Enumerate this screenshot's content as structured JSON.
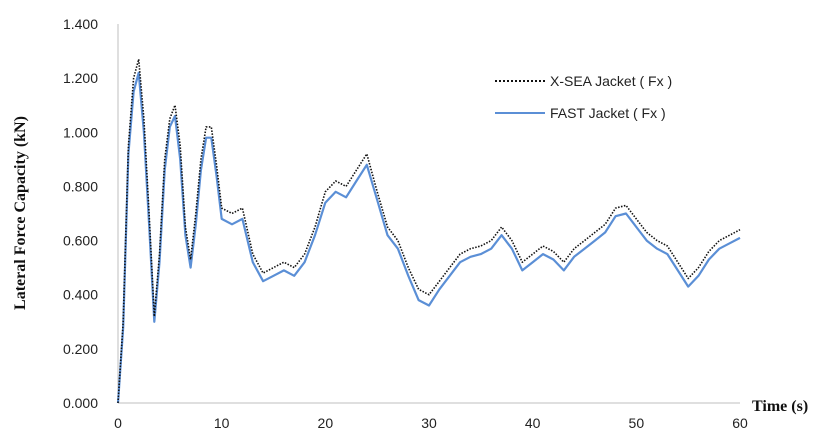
{
  "chart_data": {
    "type": "line",
    "title": "",
    "xlabel": "Time (s)",
    "ylabel": "Lateral Force Capacity (kN)",
    "xlim": [
      0,
      60
    ],
    "ylim": [
      0,
      1.4
    ],
    "xticks": [
      "0",
      "10",
      "20",
      "30",
      "40",
      "50",
      "60"
    ],
    "yticks": [
      "0.000",
      "0.200",
      "0.400",
      "0.600",
      "0.800",
      "1.000",
      "1.200",
      "1.400"
    ],
    "grid": false,
    "legend_position": "top-right",
    "series": [
      {
        "name": "X-SEA Jacket ( Fx )",
        "color": "#111111",
        "style": "dotted",
        "x": [
          0,
          0.5,
          1,
          1.5,
          2,
          2.5,
          3,
          3.5,
          4,
          4.5,
          5,
          5.5,
          6,
          6.5,
          7,
          7.5,
          8,
          8.5,
          9,
          9.5,
          10,
          11,
          12,
          13,
          14,
          15,
          16,
          17,
          18,
          19,
          20,
          21,
          22,
          23,
          24,
          25,
          26,
          27,
          28,
          29,
          30,
          31,
          32,
          33,
          34,
          35,
          36,
          37,
          38,
          39,
          40,
          41,
          42,
          43,
          44,
          45,
          46,
          47,
          48,
          49,
          50,
          51,
          52,
          53,
          54,
          55,
          56,
          57,
          58,
          59,
          60
        ],
        "y": [
          0,
          0.3,
          0.95,
          1.2,
          1.27,
          1.05,
          0.7,
          0.32,
          0.55,
          0.9,
          1.05,
          1.1,
          0.95,
          0.65,
          0.53,
          0.7,
          0.9,
          1.02,
          1.02,
          0.88,
          0.72,
          0.7,
          0.72,
          0.55,
          0.48,
          0.5,
          0.52,
          0.5,
          0.55,
          0.65,
          0.78,
          0.82,
          0.8,
          0.86,
          0.92,
          0.78,
          0.65,
          0.6,
          0.5,
          0.42,
          0.4,
          0.45,
          0.5,
          0.55,
          0.57,
          0.58,
          0.6,
          0.65,
          0.6,
          0.52,
          0.55,
          0.58,
          0.56,
          0.52,
          0.57,
          0.6,
          0.63,
          0.66,
          0.72,
          0.73,
          0.68,
          0.63,
          0.6,
          0.58,
          0.52,
          0.46,
          0.5,
          0.56,
          0.6,
          0.62,
          0.64
        ]
      },
      {
        "name": "FAST Jacket ( Fx )",
        "color": "#5b8fd6",
        "style": "solid",
        "x": [
          0,
          0.5,
          1,
          1.5,
          2,
          2.5,
          3,
          3.5,
          4,
          4.5,
          5,
          5.5,
          6,
          6.5,
          7,
          7.5,
          8,
          8.5,
          9,
          9.5,
          10,
          11,
          12,
          13,
          14,
          15,
          16,
          17,
          18,
          19,
          20,
          21,
          22,
          23,
          24,
          25,
          26,
          27,
          28,
          29,
          30,
          31,
          32,
          33,
          34,
          35,
          36,
          37,
          38,
          39,
          40,
          41,
          42,
          43,
          44,
          45,
          46,
          47,
          48,
          49,
          50,
          51,
          52,
          53,
          54,
          55,
          56,
          57,
          58,
          59,
          60
        ],
        "y": [
          0,
          0.28,
          0.92,
          1.15,
          1.22,
          1.0,
          0.66,
          0.3,
          0.52,
          0.86,
          1.02,
          1.06,
          0.9,
          0.62,
          0.5,
          0.66,
          0.86,
          0.98,
          0.98,
          0.84,
          0.68,
          0.66,
          0.68,
          0.52,
          0.45,
          0.47,
          0.49,
          0.47,
          0.52,
          0.62,
          0.74,
          0.78,
          0.76,
          0.82,
          0.88,
          0.75,
          0.62,
          0.57,
          0.47,
          0.38,
          0.36,
          0.42,
          0.47,
          0.52,
          0.54,
          0.55,
          0.57,
          0.62,
          0.57,
          0.49,
          0.52,
          0.55,
          0.53,
          0.49,
          0.54,
          0.57,
          0.6,
          0.63,
          0.69,
          0.7,
          0.65,
          0.6,
          0.57,
          0.55,
          0.49,
          0.43,
          0.47,
          0.53,
          0.57,
          0.59,
          0.61
        ]
      }
    ]
  }
}
